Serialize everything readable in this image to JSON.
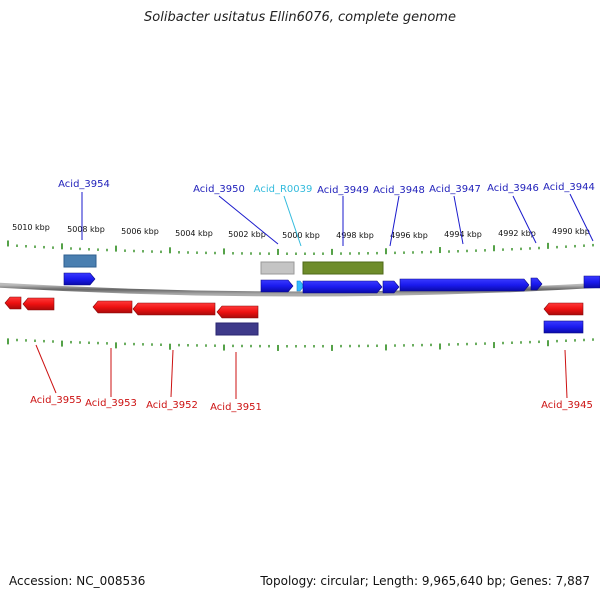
{
  "title": "Solibacter usitatus Ellin6076, complete genome",
  "accession": "Accession: NC_008536",
  "topology": "Topology: circular; Length: 9,965,640 bp; Genes: 7,887",
  "colors": {
    "forward_gene": "#1a1aee",
    "reverse_gene": "#ee1111",
    "forward_label": "#2222bb",
    "reverse_label": "#cc1111",
    "rna_label": "#33bbdd",
    "tick": "#2a8a1a",
    "backbone": "#888888",
    "steelblue_feature": "#4a7fb0",
    "grey_feature": "#c4c4c4",
    "olive_feature": "#6e8c2a",
    "purple_feature": "#3e3a8a"
  },
  "scale_labels": [
    "5010 kbp",
    "5008 kbp",
    "5006 kbp",
    "5004 kbp",
    "5002 kbp",
    "5000 kbp",
    "4998 kbp",
    "4996 kbp",
    "4994 kbp",
    "4992 kbp",
    "4990 kbp"
  ],
  "forward_genes": [
    "Acid_3954",
    "Acid_3950",
    "Acid_R0039",
    "Acid_3949",
    "Acid_3948",
    "Acid_3947",
    "Acid_3946",
    "Acid_3944"
  ],
  "reverse_genes": [
    "Acid_3955",
    "Acid_3953",
    "Acid_3952",
    "Acid_3951",
    "Acid_3945"
  ]
}
